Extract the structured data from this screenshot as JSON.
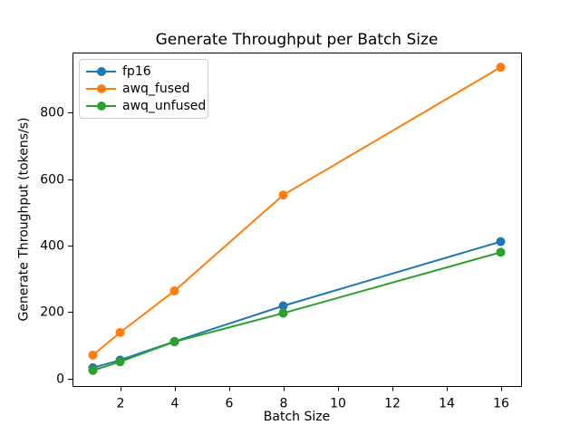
{
  "figure": {
    "background_color": "#ffffff",
    "text_color": "#000000",
    "legend_border_color": "#cccccc"
  },
  "chart_data": {
    "type": "line",
    "title": "Generate Throughput per Batch Size",
    "xlabel": "Batch Size",
    "ylabel": "Generate Throughput (tokens/s)",
    "x": [
      1,
      2,
      4,
      8,
      16
    ],
    "series": [
      {
        "name": "fp16",
        "color": "#1f77b4",
        "values": [
          33,
          56,
          112,
          219,
          412
        ]
      },
      {
        "name": "awq_fused",
        "color": "#ff7f0e",
        "values": [
          71,
          139,
          264,
          552,
          936
        ]
      },
      {
        "name": "awq_unfused",
        "color": "#2ca02c",
        "values": [
          25,
          51,
          111,
          197,
          380
        ]
      }
    ],
    "xticks": [
      2,
      4,
      6,
      8,
      10,
      12,
      14,
      16
    ],
    "yticks": [
      0,
      200,
      400,
      600,
      800
    ],
    "xlim": [
      0.25,
      16.75
    ],
    "ylim": [
      -22,
      980
    ],
    "grid": false,
    "marker": "circle",
    "marker_radius": 5,
    "line_width": 2,
    "legend": {
      "position": "upper-left",
      "entries": [
        "fp16",
        "awq_fused",
        "awq_unfused"
      ]
    }
  }
}
